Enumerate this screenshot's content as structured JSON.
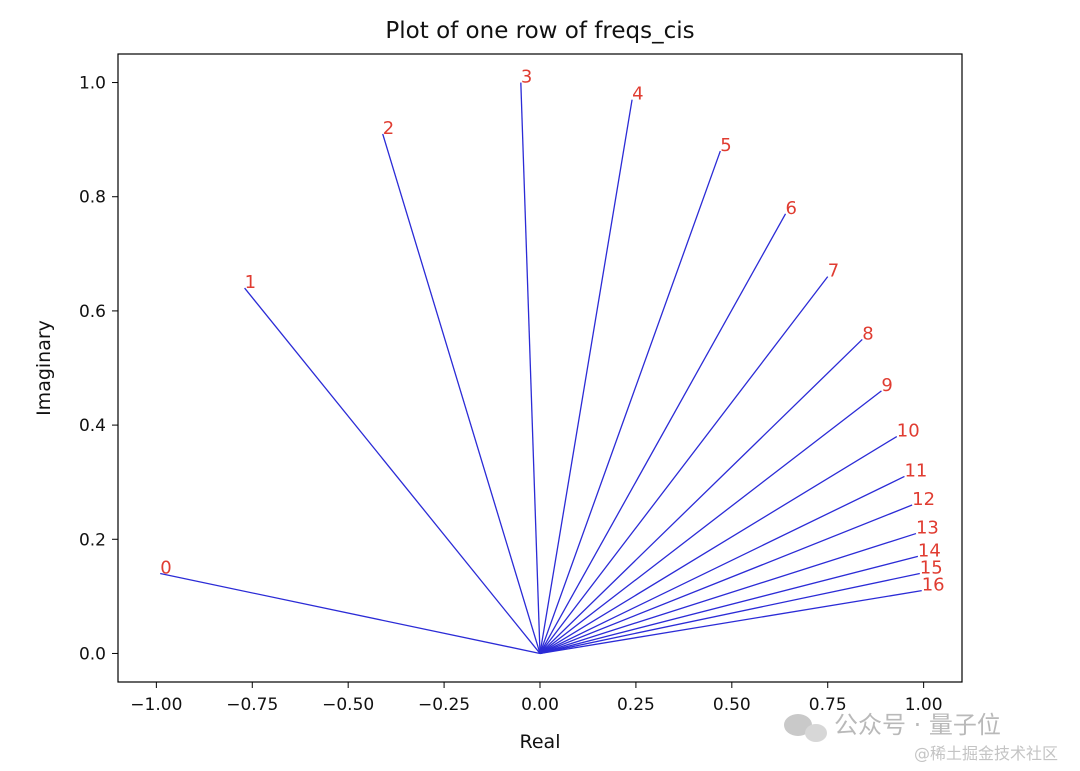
{
  "chart_data": {
    "type": "line",
    "title": "Plot of one row of freqs_cis",
    "xlabel": "Real",
    "ylabel": "Imaginary",
    "xlim": [
      -1.1,
      1.1
    ],
    "ylim": [
      -0.05,
      1.05
    ],
    "xticks": [
      -1.0,
      -0.75,
      -0.5,
      -0.25,
      0.0,
      0.25,
      0.5,
      0.75,
      1.0
    ],
    "xtick_labels": [
      "−1.00",
      "−0.75",
      "−0.50",
      "−0.25",
      "0.00",
      "0.25",
      "0.50",
      "0.75",
      "1.00"
    ],
    "yticks": [
      0.0,
      0.2,
      0.4,
      0.6,
      0.8,
      1.0
    ],
    "ytick_labels": [
      "0.0",
      "0.2",
      "0.4",
      "0.6",
      "0.8",
      "1.0"
    ],
    "origin": [
      0,
      0
    ],
    "line_color": "#2b2bd6",
    "label_color": "#e03c31",
    "points": [
      {
        "label": "0",
        "x": -0.99,
        "y": 0.14
      },
      {
        "label": "1",
        "x": -0.77,
        "y": 0.64
      },
      {
        "label": "2",
        "x": -0.41,
        "y": 0.91
      },
      {
        "label": "3",
        "x": -0.05,
        "y": 1.0
      },
      {
        "label": "4",
        "x": 0.24,
        "y": 0.97
      },
      {
        "label": "5",
        "x": 0.47,
        "y": 0.88
      },
      {
        "label": "6",
        "x": 0.64,
        "y": 0.77
      },
      {
        "label": "7",
        "x": 0.75,
        "y": 0.66
      },
      {
        "label": "8",
        "x": 0.84,
        "y": 0.55
      },
      {
        "label": "9",
        "x": 0.89,
        "y": 0.46
      },
      {
        "label": "10",
        "x": 0.93,
        "y": 0.38
      },
      {
        "label": "11",
        "x": 0.95,
        "y": 0.31
      },
      {
        "label": "12",
        "x": 0.97,
        "y": 0.26
      },
      {
        "label": "13",
        "x": 0.98,
        "y": 0.21
      },
      {
        "label": "14",
        "x": 0.985,
        "y": 0.17
      },
      {
        "label": "15",
        "x": 0.99,
        "y": 0.14
      },
      {
        "label": "16",
        "x": 0.995,
        "y": 0.11
      }
    ]
  },
  "watermarks": {
    "wechat": "公众号 · 量子位",
    "juejin": "@稀土掘金技术社区"
  }
}
